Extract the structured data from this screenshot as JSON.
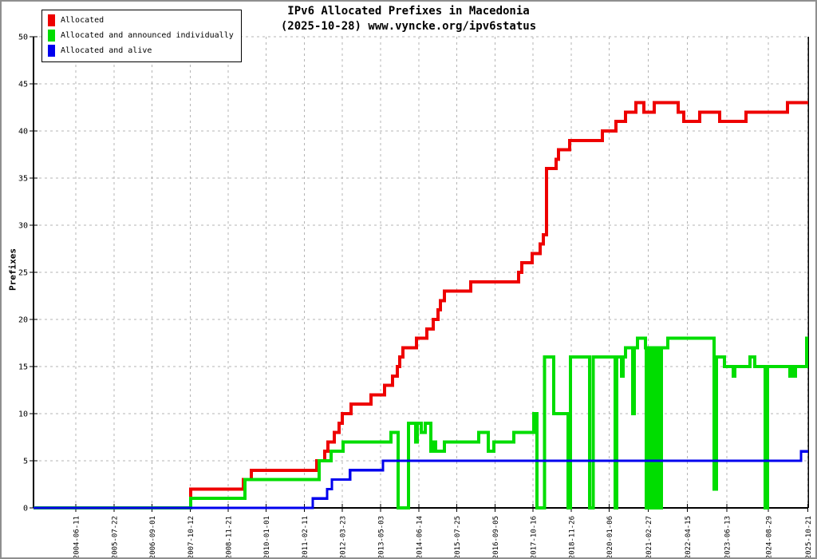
{
  "chart_data": {
    "type": "line",
    "step": true,
    "title": "IPv6 Allocated Prefixes in Macedonia",
    "subtitle": "(2025-10-28) www.vyncke.org/ipv6status",
    "ylabel": "Prefixes",
    "ylim": [
      0,
      50
    ],
    "yticks": [
      0,
      5,
      10,
      15,
      20,
      25,
      30,
      35,
      40,
      45,
      50
    ],
    "grid": true,
    "legend_position": "top-left",
    "x_domain_years": [
      2003.21,
      2025.82
    ],
    "x_tick_labels": [
      "2004-06-11",
      "2005-07-22",
      "2006-09-01",
      "2007-10-12",
      "2008-11-21",
      "2010-01-01",
      "2011-02-11",
      "2012-03-23",
      "2013-05-03",
      "2014-06-14",
      "2015-07-25",
      "2016-09-05",
      "2017-10-16",
      "2018-11-26",
      "2020-01-06",
      "2021-02-27",
      "2022-04-15",
      "2023-06-13",
      "2024-08-29",
      "2025-10-21"
    ],
    "series": [
      {
        "name": "Allocated",
        "color": "#ee0000",
        "points": [
          [
            2003.21,
            0
          ],
          [
            2007.8,
            2
          ],
          [
            2009.33,
            3
          ],
          [
            2009.57,
            4
          ],
          [
            2011.48,
            5
          ],
          [
            2011.71,
            6
          ],
          [
            2011.8,
            7
          ],
          [
            2011.99,
            8
          ],
          [
            2012.13,
            9
          ],
          [
            2012.22,
            10
          ],
          [
            2012.48,
            11
          ],
          [
            2013.06,
            12
          ],
          [
            2013.45,
            13
          ],
          [
            2013.69,
            14
          ],
          [
            2013.83,
            15
          ],
          [
            2013.9,
            16
          ],
          [
            2013.99,
            17
          ],
          [
            2014.39,
            18
          ],
          [
            2014.69,
            19
          ],
          [
            2014.88,
            20
          ],
          [
            2015.02,
            21
          ],
          [
            2015.09,
            22
          ],
          [
            2015.2,
            23
          ],
          [
            2015.97,
            24
          ],
          [
            2017.37,
            25
          ],
          [
            2017.46,
            26
          ],
          [
            2017.76,
            27
          ],
          [
            2018.0,
            28
          ],
          [
            2018.09,
            29
          ],
          [
            2018.18,
            36
          ],
          [
            2018.46,
            37
          ],
          [
            2018.53,
            38
          ],
          [
            2018.86,
            39
          ],
          [
            2019.81,
            40
          ],
          [
            2020.21,
            41
          ],
          [
            2020.49,
            42
          ],
          [
            2020.79,
            43
          ],
          [
            2021.02,
            42
          ],
          [
            2021.33,
            43
          ],
          [
            2022.02,
            42
          ],
          [
            2022.19,
            41
          ],
          [
            2022.65,
            42
          ],
          [
            2023.23,
            41
          ],
          [
            2024.0,
            42
          ],
          [
            2025.21,
            43
          ]
        ]
      },
      {
        "name": "Allocated and announced individually",
        "color": "#00dd00",
        "points": [
          [
            2003.21,
            0
          ],
          [
            2007.8,
            1
          ],
          [
            2009.38,
            3
          ],
          [
            2011.55,
            5
          ],
          [
            2011.9,
            6
          ],
          [
            2012.24,
            7
          ],
          [
            2013.64,
            8
          ],
          [
            2013.85,
            0
          ],
          [
            2014.15,
            9
          ],
          [
            2014.36,
            7
          ],
          [
            2014.41,
            9
          ],
          [
            2014.53,
            8
          ],
          [
            2014.64,
            9
          ],
          [
            2014.81,
            6
          ],
          [
            2014.9,
            7
          ],
          [
            2014.95,
            6
          ],
          [
            2015.2,
            7
          ],
          [
            2016.2,
            8
          ],
          [
            2016.48,
            6
          ],
          [
            2016.65,
            7
          ],
          [
            2017.23,
            8
          ],
          [
            2017.81,
            10
          ],
          [
            2017.9,
            0
          ],
          [
            2018.13,
            16
          ],
          [
            2018.39,
            10
          ],
          [
            2018.81,
            0
          ],
          [
            2018.88,
            16
          ],
          [
            2019.44,
            0
          ],
          [
            2019.55,
            16
          ],
          [
            2020.18,
            0
          ],
          [
            2020.23,
            16
          ],
          [
            2020.37,
            14
          ],
          [
            2020.42,
            16
          ],
          [
            2020.49,
            17
          ],
          [
            2020.7,
            10
          ],
          [
            2020.74,
            17
          ],
          [
            2020.84,
            18
          ],
          [
            2021.07,
            17
          ],
          [
            2021.09,
            0
          ],
          [
            2021.14,
            17
          ],
          [
            2021.21,
            0
          ],
          [
            2021.28,
            17
          ],
          [
            2021.33,
            0
          ],
          [
            2021.42,
            17
          ],
          [
            2021.47,
            0
          ],
          [
            2021.54,
            17
          ],
          [
            2021.72,
            18
          ],
          [
            2023.07,
            2
          ],
          [
            2023.14,
            16
          ],
          [
            2023.37,
            15
          ],
          [
            2023.63,
            14
          ],
          [
            2023.68,
            15
          ],
          [
            2024.12,
            16
          ],
          [
            2024.26,
            15
          ],
          [
            2024.56,
            0
          ],
          [
            2024.63,
            15
          ],
          [
            2025.28,
            14
          ],
          [
            2025.33,
            15
          ],
          [
            2025.38,
            14
          ],
          [
            2025.45,
            15
          ],
          [
            2025.77,
            18
          ]
        ]
      },
      {
        "name": "Allocated and alive",
        "color": "#0000ee",
        "points": [
          [
            2003.21,
            0
          ],
          [
            2011.36,
            1
          ],
          [
            2011.78,
            2
          ],
          [
            2011.92,
            3
          ],
          [
            2012.45,
            4
          ],
          [
            2013.41,
            5
          ],
          [
            2025.61,
            6
          ]
        ]
      }
    ]
  }
}
